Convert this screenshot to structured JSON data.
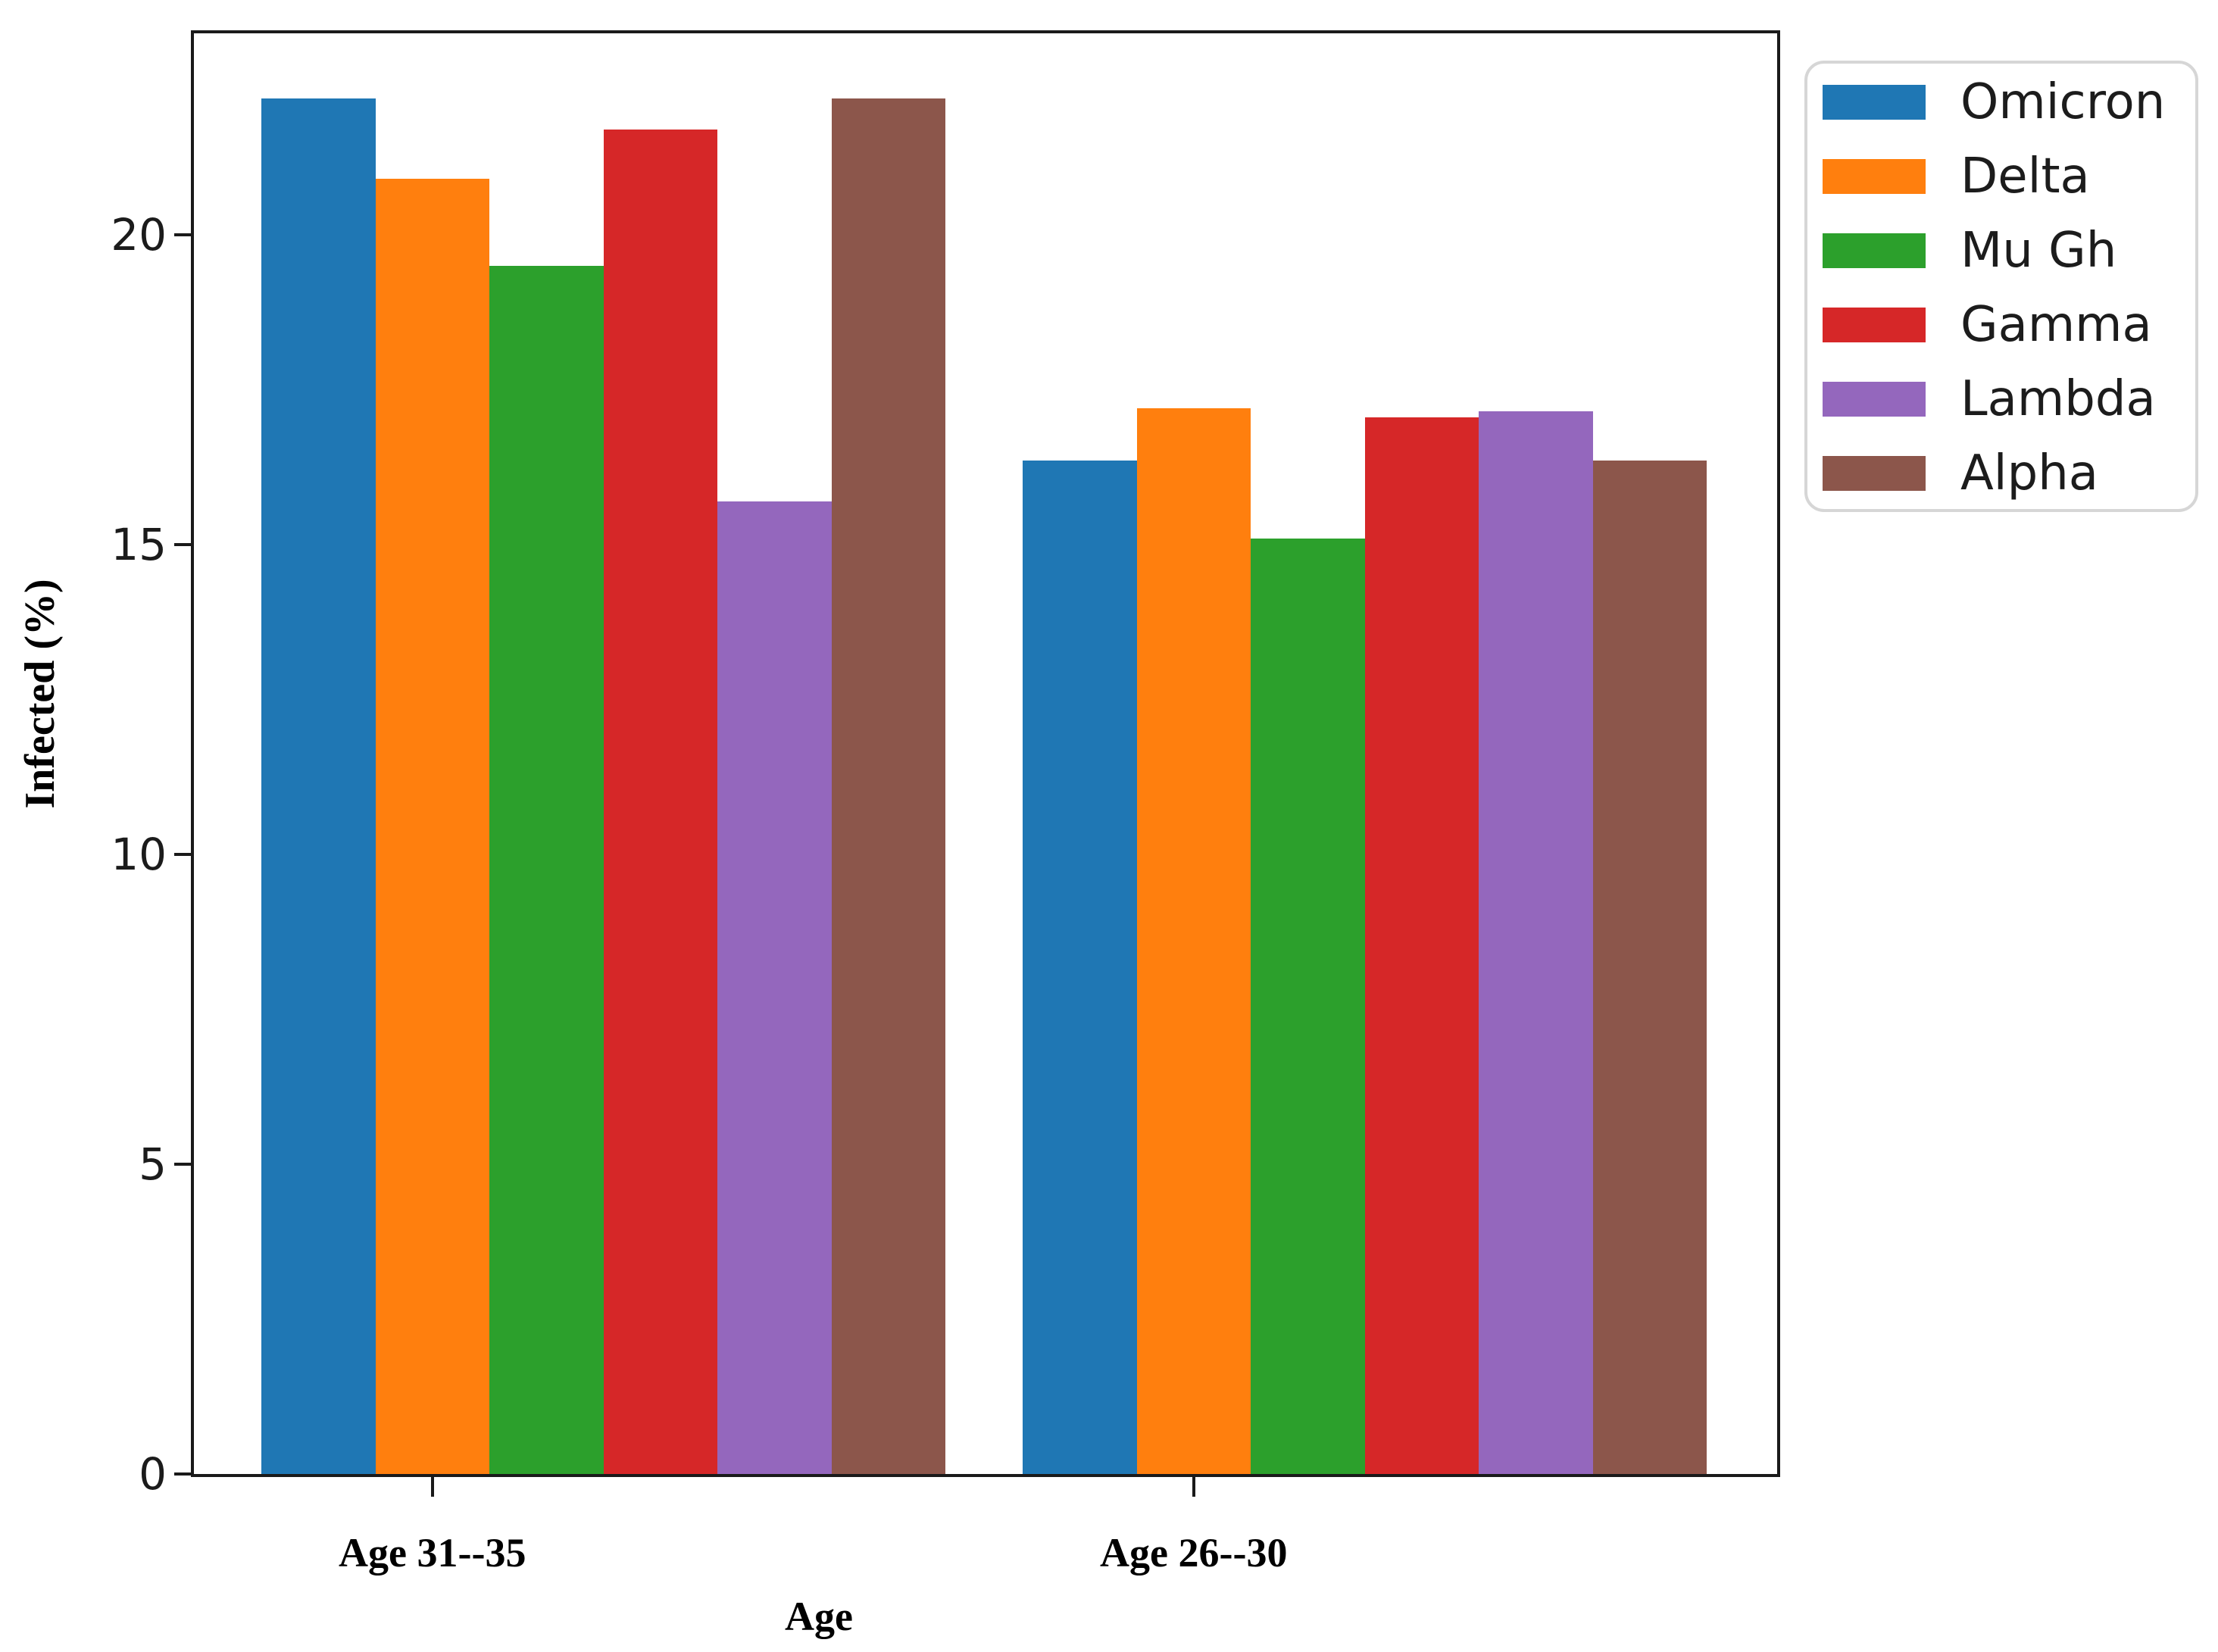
{
  "chart_data": {
    "type": "bar",
    "title": "",
    "xlabel": "Age",
    "ylabel": "Infected (%)",
    "categories": [
      "Age 31--35",
      "Age 26--30"
    ],
    "series": [
      {
        "name": "Omicron",
        "color": "#1f77b4",
        "values": [
          22.2,
          16.35
        ]
      },
      {
        "name": "Delta",
        "color": "#ff7f0e",
        "values": [
          20.9,
          17.2
        ]
      },
      {
        "name": "Mu Gh",
        "color": "#2ca02c",
        "values": [
          19.5,
          15.1
        ]
      },
      {
        "name": "Gamma",
        "color": "#d62728",
        "values": [
          21.7,
          17.05
        ]
      },
      {
        "name": "Lambda",
        "color": "#9467bd",
        "values": [
          15.7,
          17.15
        ]
      },
      {
        "name": "Alpha",
        "color": "#8c564b",
        "values": [
          22.2,
          16.35
        ]
      }
    ],
    "yticks": [
      0,
      5,
      10,
      15,
      20
    ],
    "ylim": [
      0,
      23.25
    ],
    "grid": false,
    "legend_position": "upper right",
    "axis_color": "#1a1a1a",
    "text_color": "#000000",
    "legend_border_color": "#d6d6d6",
    "background_color": "#ffffff"
  }
}
